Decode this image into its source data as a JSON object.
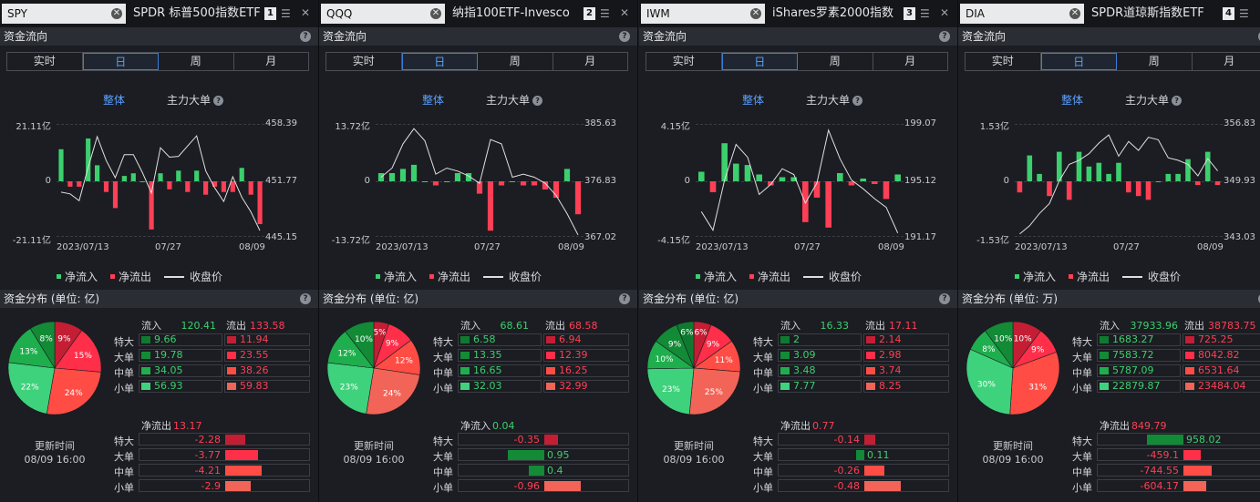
{
  "colors": {
    "inflow": "#3ccf6e",
    "outflow": "#ff3f55",
    "accent": "#5aa0ff",
    "line": "#e0e0e0"
  },
  "tabs": [
    "实时",
    "日",
    "周",
    "月"
  ],
  "active_tab": "日",
  "flow_header": "资金流向",
  "sub_all": "整体",
  "sub_main": "主力大单",
  "legend": {
    "in": "净流入",
    "out": "净流出",
    "close": "收盘价"
  },
  "dates": [
    "2023/07/13",
    "07/27",
    "08/09"
  ],
  "row_labels": [
    "特大",
    "大单",
    "中单",
    "小单"
  ],
  "update_label": "更新时间",
  "update_time": "08/09 16:00",
  "in_label": "流入",
  "out_label": "流出",
  "panels": [
    {
      "ticker": "SPY",
      "name": "SPDR 标普500指数ETF",
      "link": "1",
      "dist_header": "资金分布 (单位: 亿)",
      "axis": {
        "flow_top": "21.11亿",
        "flow_zero": "0",
        "flow_bot": "-21.11亿",
        "price_top": "458.39",
        "price_mid": "451.77",
        "price_bot": "445.15"
      },
      "chart_data": {
        "type": "bar",
        "flow": [
          12,
          -2,
          -2,
          16,
          6,
          -4,
          -10,
          2,
          3,
          0,
          -18,
          3,
          -3,
          4,
          -4,
          4,
          -5,
          -2,
          -4,
          -4,
          5,
          -5,
          -16
        ],
        "flow_max": 21.11,
        "price": [
          450.5,
          450.3,
          449.5,
          453.4,
          457.0,
          454.2,
          452.2,
          454.9,
          454.9,
          452.8,
          450.4,
          455.7,
          454.6,
          454.7,
          455.9,
          457.1,
          453.0,
          451.0,
          449.4,
          452.3,
          449.9,
          448.2,
          446.0
        ],
        "price_range": [
          445.15,
          458.39
        ]
      },
      "inflow_total": "120.41",
      "outflow_total": "133.58",
      "pie": [
        {
          "pct": "9%",
          "label": "9%",
          "v": 9,
          "dir": "out"
        },
        {
          "pct": "15%",
          "label": "15%",
          "v": 15,
          "dir": "out"
        },
        {
          "pct": "24%",
          "label": "24%",
          "v": 24,
          "dir": "out"
        },
        {
          "pct": "22%",
          "label": "22%",
          "v": 22,
          "dir": "in"
        },
        {
          "pct": "13%",
          "label": "13%",
          "v": 13,
          "dir": "in"
        },
        {
          "pct": "8%",
          "label": "8%",
          "v": 8,
          "dir": "in"
        }
      ],
      "inflow": [
        "9.66",
        "19.78",
        "34.05",
        "56.93"
      ],
      "outflow": [
        "11.94",
        "23.55",
        "38.26",
        "59.83"
      ],
      "net_label": "净流出",
      "net_value": "13.17",
      "net_dir": "out",
      "net_rows": [
        {
          "v": "-2.28",
          "n": -2.28
        },
        {
          "v": "-3.77",
          "n": -3.77
        },
        {
          "v": "-4.21",
          "n": -4.21
        },
        {
          "v": "-2.9",
          "n": -2.9
        }
      ]
    },
    {
      "ticker": "QQQ",
      "name": "纳指100ETF-Invesco",
      "link": "2",
      "dist_header": "资金分布 (单位: 亿)",
      "axis": {
        "flow_top": "13.72亿",
        "flow_zero": "0",
        "flow_bot": "-13.72亿",
        "price_top": "385.63",
        "price_mid": "376.83",
        "price_bot": "367.02"
      },
      "chart_data": {
        "type": "bar",
        "flow": [
          2,
          2,
          3,
          4,
          0,
          -1,
          0,
          2,
          2,
          -3,
          -12,
          -1,
          0,
          -1,
          -1,
          -2,
          -4,
          3,
          -8
        ],
        "flow_max": 13.72,
        "price": [
          377,
          378.5,
          382.5,
          385,
          383,
          377.5,
          378.5,
          378,
          377.2,
          376,
          383.2,
          382.5,
          377,
          377.5,
          377,
          376,
          374,
          371,
          367.5
        ],
        "price_range": [
          367.02,
          385.63
        ]
      },
      "inflow_total": "68.61",
      "outflow_total": "68.58",
      "pie": [
        {
          "pct": "5%",
          "label": "5%",
          "v": 5,
          "dir": "out"
        },
        {
          "pct": "9%",
          "label": "9%",
          "v": 9,
          "dir": "out"
        },
        {
          "pct": "12%",
          "label": "12%",
          "v": 12,
          "dir": "out"
        },
        {
          "pct": "24%",
          "label": "24%",
          "v": 24,
          "dir": "out"
        },
        {
          "pct": "23%",
          "label": "23%",
          "v": 23,
          "dir": "in"
        },
        {
          "pct": "12%",
          "label": "12%",
          "v": 12,
          "dir": "in"
        },
        {
          "pct": "10%",
          "label": "10%",
          "v": 10,
          "dir": "in"
        }
      ],
      "inflow": [
        "6.58",
        "13.35",
        "16.65",
        "32.03"
      ],
      "outflow": [
        "6.94",
        "12.39",
        "16.25",
        "32.99"
      ],
      "net_label": "净流入",
      "net_value": "0.04",
      "net_dir": "in",
      "net_rows": [
        {
          "v": "-0.35",
          "n": -0.35
        },
        {
          "v": "0.95",
          "n": 0.95
        },
        {
          "v": "0.4",
          "n": 0.4
        },
        {
          "v": "-0.96",
          "n": -0.96
        }
      ]
    },
    {
      "ticker": "IWM",
      "name": "iShares罗素2000指数",
      "link": "3",
      "dist_header": "资金分布 (单位: 亿)",
      "axis": {
        "flow_top": "4.15亿",
        "flow_zero": "0",
        "flow_bot": "-4.15亿",
        "price_top": "199.07",
        "price_mid": "195.12",
        "price_bot": "191.17"
      },
      "chart_data": {
        "type": "bar",
        "flow": [
          0.7,
          -0.8,
          2.8,
          1.3,
          1.2,
          0.5,
          -0.3,
          0.3,
          0.3,
          -3.0,
          -1.2,
          -3.4,
          0.6,
          -0.3,
          0.2,
          -0.2,
          -1.3,
          0.5
        ],
        "flow_max": 4.15,
        "price": [
          193.0,
          191.7,
          195.2,
          197.7,
          196.8,
          194.2,
          194.9,
          196.0,
          195.6,
          193.6,
          195.0,
          198.7,
          196.7,
          195.2,
          194.6,
          193.9,
          193.3,
          191.5
        ],
        "price_range": [
          191.17,
          199.07
        ]
      },
      "inflow_total": "16.33",
      "outflow_total": "17.11",
      "pie": [
        {
          "pct": "6%",
          "label": "6%",
          "v": 6,
          "dir": "out"
        },
        {
          "pct": "9%",
          "label": "9%",
          "v": 9,
          "dir": "out"
        },
        {
          "pct": "11%",
          "label": "11%",
          "v": 11,
          "dir": "out"
        },
        {
          "pct": "25%",
          "label": "25%",
          "v": 25,
          "dir": "out"
        },
        {
          "pct": "23%",
          "label": "23%",
          "v": 23,
          "dir": "in"
        },
        {
          "pct": "10%",
          "label": "10%",
          "v": 10,
          "dir": "in"
        },
        {
          "pct": "9%",
          "label": "9%",
          "v": 9,
          "dir": "in"
        },
        {
          "pct": "6%",
          "label": "6%",
          "v": 6,
          "dir": "in"
        }
      ],
      "inflow": [
        "2",
        "3.09",
        "3.48",
        "7.77"
      ],
      "outflow": [
        "2.14",
        "2.98",
        "3.74",
        "8.25"
      ],
      "net_label": "净流出",
      "net_value": "0.77",
      "net_dir": "out",
      "net_rows": [
        {
          "v": "-0.14",
          "n": -0.14
        },
        {
          "v": "0.11",
          "n": 0.11
        },
        {
          "v": "-0.26",
          "n": -0.26
        },
        {
          "v": "-0.48",
          "n": -0.48
        }
      ]
    },
    {
      "ticker": "DIA",
      "name": "SPDR道琼斯指数ETF",
      "link": "4",
      "dist_header": "资金分布 (单位: 万)",
      "axis": {
        "flow_top": "1.53亿",
        "flow_zero": "0",
        "flow_bot": "-1.53亿",
        "price_top": "356.83",
        "price_mid": "349.93",
        "price_bot": "343.03"
      },
      "chart_data": {
        "type": "bar",
        "flow": [
          -0.3,
          0.7,
          0.2,
          -0.4,
          0.8,
          -0.5,
          0.8,
          0.4,
          0.5,
          0.2,
          0.5,
          -0.3,
          -0.4,
          -0.5,
          0.0,
          0.2,
          0.2,
          0.6,
          -0.1,
          0.8,
          -0.1
        ],
        "flow_max": 1.53,
        "price": [
          343.5,
          344.5,
          346.0,
          347.2,
          350.0,
          352.0,
          352.5,
          353.3,
          354.6,
          355.6,
          353.0,
          354.8,
          353.7,
          355.3,
          355.0,
          352.8,
          352.5,
          352.0,
          350.6,
          352.7,
          351.2
        ],
        "price_range": [
          343.03,
          356.83
        ]
      },
      "inflow_total": "37933.96",
      "outflow_total": "38783.75",
      "pie": [
        {
          "pct": "10%",
          "label": "10%",
          "v": 10,
          "dir": "out"
        },
        {
          "pct": "9%",
          "label": "9%",
          "v": 9,
          "dir": "out"
        },
        {
          "pct": "31%",
          "label": "31%",
          "v": 31,
          "dir": "out"
        },
        {
          "pct": "30%",
          "label": "30%",
          "v": 30,
          "dir": "in"
        },
        {
          "pct": "8%",
          "label": "8%",
          "v": 8,
          "dir": "in"
        },
        {
          "pct": "10%",
          "label": "10%",
          "v": 10,
          "dir": "in"
        }
      ],
      "inflow": [
        "1683.27",
        "7583.72",
        "5787.09",
        "22879.87"
      ],
      "outflow": [
        "725.25",
        "8042.82",
        "6531.64",
        "23484.04"
      ],
      "net_label": "净流出",
      "net_value": "849.79",
      "net_dir": "out",
      "net_rows": [
        {
          "v": "958.02",
          "n": 958.02
        },
        {
          "v": "-459.1",
          "n": -459.1
        },
        {
          "v": "-744.55",
          "n": -744.55
        },
        {
          "v": "-604.17",
          "n": -604.17
        }
      ]
    }
  ]
}
